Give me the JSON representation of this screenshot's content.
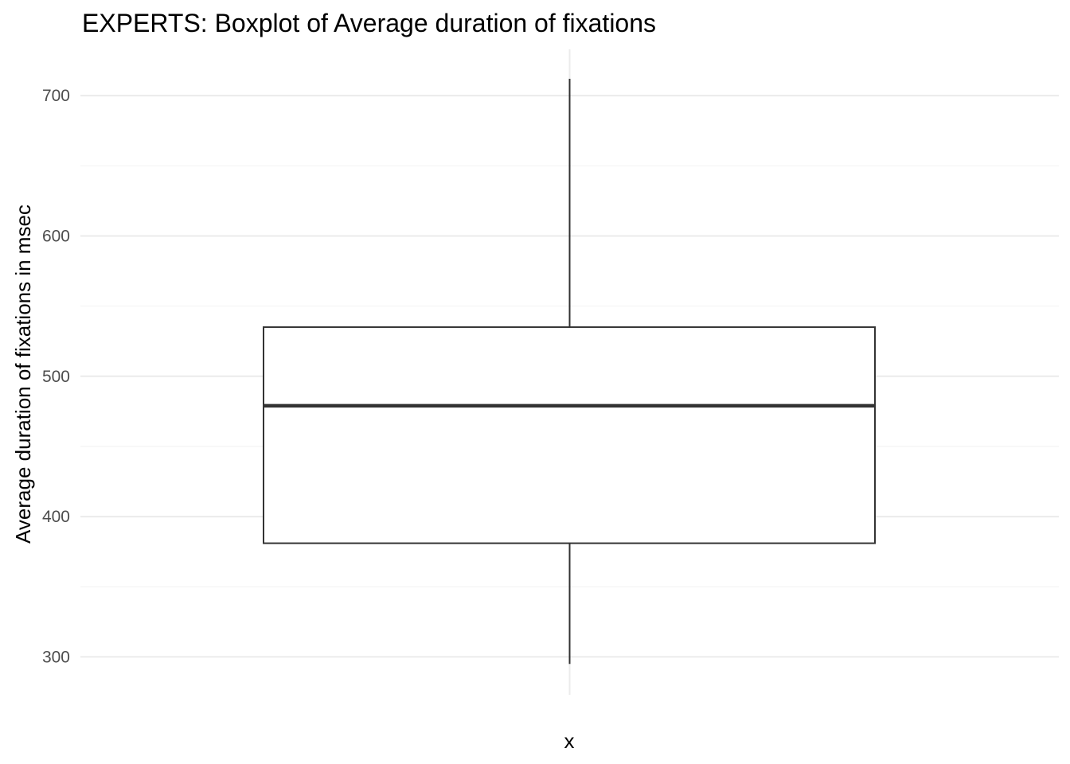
{
  "chart_data": {
    "type": "boxplot",
    "title": "EXPERTS: Boxplot of Average duration of fixations",
    "xlabel": "x",
    "ylabel": "Average duration of fixations in msec",
    "ylim": [
      273,
      733
    ],
    "yticks": [
      300,
      400,
      500,
      600,
      700
    ],
    "ytick_labels": [
      "300",
      "400",
      "500",
      "600",
      "700"
    ],
    "grid": true,
    "box": {
      "whisker_low": 295,
      "q1": 381,
      "median": 479,
      "q3": 535,
      "whisker_high": 712
    },
    "colors": {
      "box_line": "#333333",
      "fill": "#ffffff",
      "grid": "#ebebeb"
    }
  }
}
